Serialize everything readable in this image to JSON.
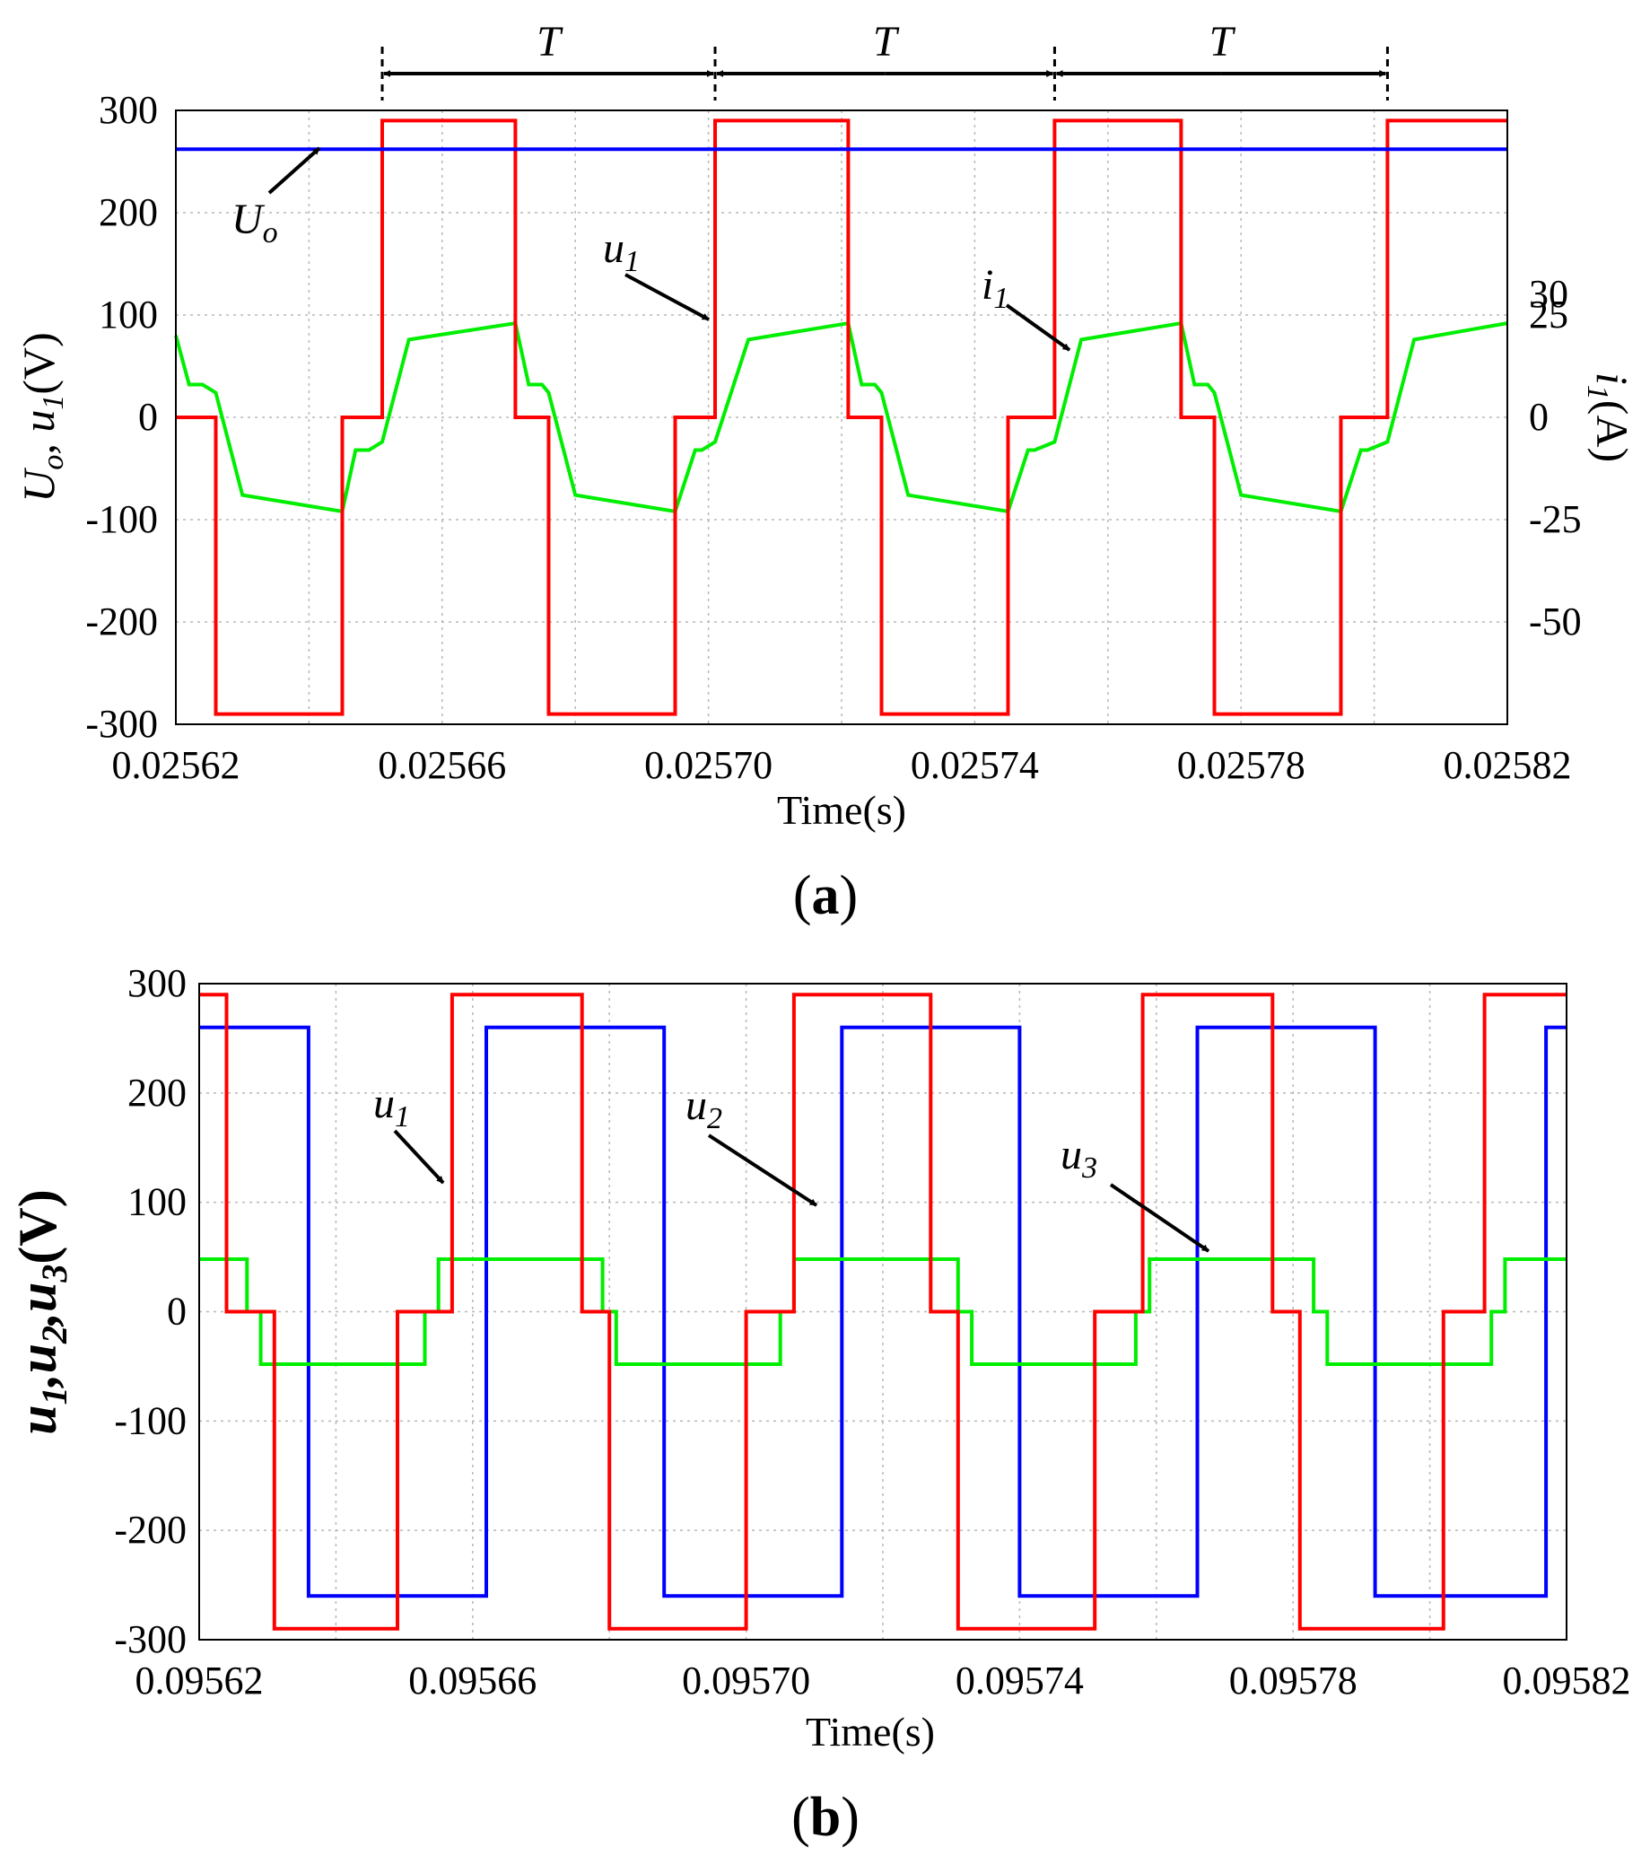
{
  "chart_data": [
    {
      "type": "line",
      "panel": "a",
      "caption": "a",
      "xlabel": "Time(s)",
      "ylabel_left": "Uo, u1(V)",
      "ylabel_left_parts": [
        "U",
        "o",
        ", ",
        "u",
        "1",
        "(V)"
      ],
      "ylabel_right": "i1(A)",
      "ylabel_right_parts": [
        "i",
        "1",
        "(A)"
      ],
      "xlim": [
        0.02562,
        0.02582
      ],
      "xticks": [
        0.02562,
        0.02566,
        0.0257,
        0.02574,
        0.02578,
        0.02582
      ],
      "xtick_labels": [
        "0.02562",
        "0.02566",
        "0.02570",
        "0.02574",
        "0.02578",
        "0.02582"
      ],
      "ylim_left": [
        -300,
        300
      ],
      "yticks_left": [
        300,
        200,
        100,
        0,
        -100,
        -200,
        -300
      ],
      "ytick_labels_left": [
        "300",
        "200",
        "100",
        "0",
        "-100",
        "-200",
        "-300"
      ],
      "ylim_right": [
        -75,
        75
      ],
      "yticks_right": [
        30,
        25,
        0,
        -25,
        -50
      ],
      "ytick_labels_right": [
        "30",
        "25",
        "0",
        "-25",
        "-50"
      ],
      "grid": true,
      "period_label": "T",
      "period_markers": [
        0.025651,
        0.025701,
        0.025752,
        0.025802
      ],
      "series": [
        {
          "name": "Uo",
          "axis": "left",
          "color": "#0000ff",
          "x": [
            0.02562,
            0.02582
          ],
          "y": [
            262,
            262
          ]
        },
        {
          "name": "u1",
          "axis": "left",
          "color": "#ff0000",
          "x": [
            0.02562,
            0.025626,
            0.025626,
            0.025645,
            0.025645,
            0.025651,
            0.025651,
            0.025671,
            0.025671,
            0.025676,
            0.025676,
            0.025695,
            0.025695,
            0.025701,
            0.025701,
            0.025721,
            0.025721,
            0.025726,
            0.025726,
            0.025745,
            0.025745,
            0.025752,
            0.025752,
            0.025771,
            0.025771,
            0.025776,
            0.025776,
            0.025795,
            0.025795,
            0.025802,
            0.025802,
            0.02582
          ],
          "y": [
            0,
            0,
            -290,
            -290,
            0,
            0,
            290,
            290,
            0,
            0,
            -290,
            -290,
            0,
            0,
            290,
            290,
            0,
            0,
            -290,
            -290,
            0,
            0,
            290,
            290,
            0,
            0,
            -290,
            -290,
            0,
            0,
            290,
            290
          ]
        },
        {
          "name": "i1",
          "axis": "right",
          "color": "#00ee00",
          "x": [
            0.02562,
            0.025622,
            0.025624,
            0.025626,
            0.02563,
            0.025645,
            0.025647,
            0.025649,
            0.025651,
            0.025655,
            0.025671,
            0.025673,
            0.025675,
            0.025676,
            0.02568,
            0.025695,
            0.025698,
            0.025699,
            0.025701,
            0.025706,
            0.025721,
            0.025723,
            0.025725,
            0.025726,
            0.02573,
            0.025745,
            0.025748,
            0.025749,
            0.025752,
            0.025756,
            0.025771,
            0.025773,
            0.025775,
            0.025776,
            0.02578,
            0.025795,
            0.025798,
            0.025799,
            0.025802,
            0.025806,
            0.02582
          ],
          "y": [
            20,
            8,
            8,
            6,
            -19,
            -23,
            -8,
            -8,
            -6,
            19,
            23,
            8,
            8,
            6,
            -19,
            -23,
            -8,
            -8,
            -6,
            19,
            23,
            8,
            8,
            6,
            -19,
            -23,
            -8,
            -8,
            -6,
            19,
            23,
            8,
            8,
            6,
            -19,
            -23,
            -8,
            -8,
            -6,
            19,
            23
          ]
        }
      ],
      "annotations": [
        {
          "label_parts": [
            "U",
            "o"
          ],
          "target_series": "Uo"
        },
        {
          "label_parts": [
            "u",
            "1"
          ],
          "target_series": "u1"
        },
        {
          "label_parts": [
            "i",
            "1"
          ],
          "target_series": "i1"
        }
      ]
    },
    {
      "type": "line",
      "panel": "b",
      "caption": "b",
      "xlabel": "Time(s)",
      "ylabel": "u1,u2,u3(V)",
      "ylabel_parts": [
        "u",
        "1",
        ",u",
        "2",
        ",u",
        "3",
        "(V)"
      ],
      "xlim": [
        0.09562,
        0.09582
      ],
      "xticks": [
        0.09562,
        0.09566,
        0.0957,
        0.09574,
        0.09578,
        0.09582
      ],
      "xtick_labels": [
        "0.09562",
        "0.09566",
        "0.09570",
        "0.09574",
        "0.09578",
        "0.09582"
      ],
      "ylim": [
        -300,
        300
      ],
      "yticks": [
        300,
        200,
        100,
        0,
        -100,
        -200,
        -300
      ],
      "ytick_labels": [
        "300",
        "200",
        "100",
        "0",
        "-100",
        "-200",
        "-300"
      ],
      "grid": true,
      "series": [
        {
          "name": "u1",
          "color": "#ff0000",
          "x": [
            0.09562,
            0.095624,
            0.095624,
            0.095631,
            0.095631,
            0.095649,
            0.095649,
            0.095657,
            0.095657,
            0.095676,
            0.095676,
            0.09568,
            0.09568,
            0.0957,
            0.0957,
            0.095707,
            0.095707,
            0.095727,
            0.095727,
            0.095731,
            0.095731,
            0.095751,
            0.095751,
            0.095758,
            0.095758,
            0.095777,
            0.095777,
            0.095781,
            0.095781,
            0.095802,
            0.095802,
            0.095808,
            0.095808,
            0.09582
          ],
          "y": [
            290,
            290,
            0,
            0,
            -290,
            -290,
            0,
            0,
            290,
            290,
            0,
            0,
            -290,
            -290,
            0,
            0,
            290,
            290,
            0,
            0,
            -290,
            -290,
            0,
            0,
            290,
            290,
            0,
            0,
            -290,
            -290,
            0,
            0,
            290,
            290
          ]
        },
        {
          "name": "u2",
          "color": "#0000ff",
          "x": [
            0.09562,
            0.095636,
            0.095636,
            0.095662,
            0.095662,
            0.095688,
            0.095688,
            0.095714,
            0.095714,
            0.09574,
            0.09574,
            0.095766,
            0.095766,
            0.095792,
            0.095792,
            0.095817,
            0.095817,
            0.09582
          ],
          "y": [
            260,
            260,
            -260,
            -260,
            260,
            260,
            -260,
            -260,
            260,
            260,
            -260,
            -260,
            260,
            260,
            -260,
            -260,
            260,
            260
          ]
        },
        {
          "name": "u3",
          "color": "#00ee00",
          "x": [
            0.09562,
            0.095627,
            0.095627,
            0.095629,
            0.095629,
            0.095653,
            0.095653,
            0.095655,
            0.095655,
            0.095679,
            0.095679,
            0.095681,
            0.095681,
            0.095705,
            0.095705,
            0.095707,
            0.095707,
            0.095731,
            0.095731,
            0.095733,
            0.095733,
            0.095757,
            0.095757,
            0.095759,
            0.095759,
            0.095783,
            0.095783,
            0.095785,
            0.095785,
            0.095809,
            0.095809,
            0.095811,
            0.095811,
            0.09582
          ],
          "y": [
            48,
            48,
            0,
            0,
            -48,
            -48,
            0,
            0,
            48,
            48,
            0,
            0,
            -48,
            -48,
            0,
            0,
            48,
            48,
            0,
            0,
            -48,
            -48,
            0,
            0,
            48,
            48,
            0,
            0,
            -48,
            -48,
            0,
            0,
            48,
            48
          ]
        }
      ],
      "annotations": [
        {
          "label_parts": [
            "u",
            "1"
          ],
          "target_series": "u1"
        },
        {
          "label_parts": [
            "u",
            "2"
          ],
          "target_series": "u2"
        },
        {
          "label_parts": [
            "u",
            "3"
          ],
          "target_series": "u3"
        }
      ]
    }
  ]
}
